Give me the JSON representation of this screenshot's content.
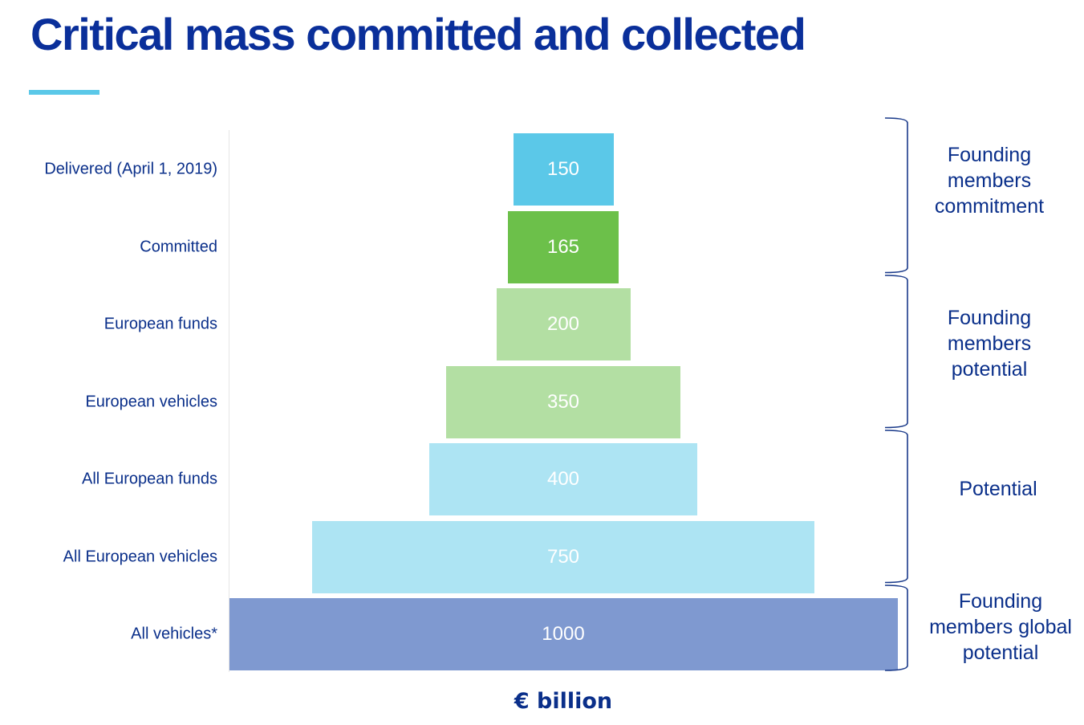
{
  "chart_data": {
    "type": "bar",
    "orientation": "horizontal-centered-funnel",
    "title": "Critical mass committed and collected",
    "xlabel": "€ billion",
    "ylabel": "",
    "categories": [
      "Delivered (April 1, 2019)",
      "Committed",
      "European funds",
      "European vehicles",
      "All European funds",
      "All European vehicles",
      "All vehicles*"
    ],
    "values": [
      150,
      165,
      200,
      350,
      400,
      750,
      1000
    ],
    "value_labels": [
      "150",
      "165",
      "200",
      "350",
      "400",
      "750",
      "1000"
    ],
    "colors": [
      "#5bc8e8",
      "#6cc04a",
      "#b3dfa3",
      "#b3dfa3",
      "#ade4f3",
      "#ade4f3",
      "#7f99d0"
    ],
    "groups": [
      {
        "label": "Founding members commitment",
        "lines": [
          "Founding",
          "members",
          "commitment"
        ],
        "start": 0,
        "end": 1
      },
      {
        "label": "Founding members potential",
        "lines": [
          "Founding",
          "members",
          "potential"
        ],
        "start": 2,
        "end": 3
      },
      {
        "label": "Potential",
        "lines": [
          "Potential"
        ],
        "start": 4,
        "end": 5
      },
      {
        "label": "Founding members global potential",
        "lines": [
          "Founding",
          "members global",
          "potential"
        ],
        "start": 6,
        "end": 6
      }
    ],
    "grid": false,
    "legend": "none"
  },
  "colors": {
    "title": "#0a2f9a",
    "accent": "#5bc8e8",
    "text": "#0a2f8a",
    "bracket": "#1a3a8a"
  }
}
